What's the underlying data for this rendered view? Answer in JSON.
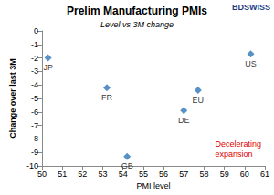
{
  "chart_data": {
    "type": "scatter",
    "title": "Prelim Manufacturing PMIs",
    "subtitle": "Level vs 3M change",
    "x_label": "PMI level",
    "y_label": "Change over last 3M",
    "logo": "BDSWISS",
    "annotation": "Decelerating expansion",
    "labels": [
      "JP",
      "FR",
      "GB",
      "DE",
      "EU",
      "US"
    ],
    "x": [
      50.3,
      53.2,
      54.2,
      57.0,
      57.7,
      60.3
    ],
    "values": [
      -2.0,
      -4.2,
      -9.3,
      -5.9,
      -4.4,
      -1.7
    ],
    "color": "#2e75b6",
    "marker": "diamond",
    "xlim": [
      50,
      61
    ],
    "xticks": [
      50,
      51,
      52,
      53,
      54,
      55,
      56,
      57,
      58,
      59,
      60,
      61
    ],
    "ylim": [
      -10,
      0
    ],
    "yticks": [
      -10,
      -9,
      -8,
      -7,
      -6,
      -5,
      -4,
      -3,
      -2,
      -1,
      0
    ],
    "grid": false
  }
}
